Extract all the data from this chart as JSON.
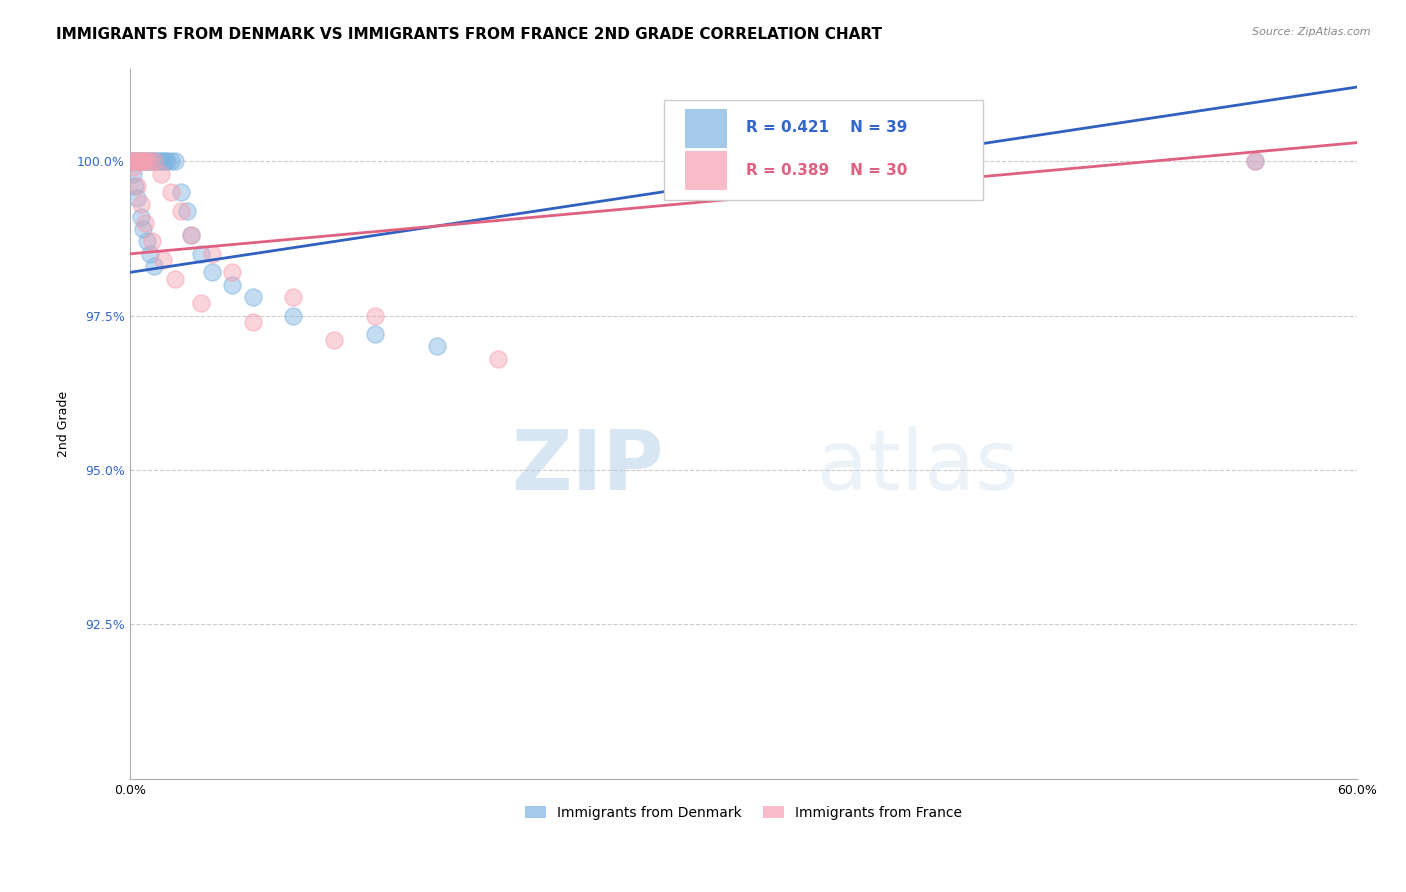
{
  "title": "IMMIGRANTS FROM DENMARK VS IMMIGRANTS FROM FRANCE 2ND GRADE CORRELATION CHART",
  "source_text": "Source: ZipAtlas.com",
  "ylabel": "2nd Grade",
  "xlim": [
    0.0,
    60.0
  ],
  "ylim": [
    90.0,
    101.5
  ],
  "yticks": [
    92.5,
    95.0,
    97.5,
    100.0
  ],
  "ytick_labels": [
    "92.5%",
    "95.0%",
    "97.5%",
    "100.0%"
  ],
  "xticks": [
    0.0,
    60.0
  ],
  "xtick_labels": [
    "0.0%",
    "60.0%"
  ],
  "denmark_color": "#7EB3E0",
  "france_color": "#F4A0B0",
  "denmark_line_color": "#3060C0",
  "france_line_color": "#E06080",
  "legend_denmark": "Immigrants from Denmark",
  "legend_france": "Immigrants from France",
  "r_denmark": 0.421,
  "n_denmark": 39,
  "r_france": 0.389,
  "n_france": 30,
  "dk_x": [
    0.1,
    0.2,
    0.3,
    0.4,
    0.5,
    0.6,
    0.7,
    0.8,
    0.9,
    1.0,
    1.1,
    1.2,
    1.3,
    1.4,
    1.5,
    1.6,
    1.7,
    1.8,
    2.0,
    2.2,
    2.5,
    2.8,
    3.0,
    3.5,
    4.0,
    5.0,
    6.0,
    8.0,
    12.0,
    15.0,
    0.15,
    0.25,
    0.35,
    0.55,
    0.65,
    0.85,
    1.0,
    1.2,
    55.0
  ],
  "dk_y": [
    100.0,
    100.0,
    100.0,
    100.0,
    100.0,
    100.0,
    100.0,
    100.0,
    100.0,
    100.0,
    100.0,
    100.0,
    100.0,
    100.0,
    100.0,
    100.0,
    100.0,
    100.0,
    100.0,
    100.0,
    99.5,
    99.2,
    98.8,
    98.5,
    98.2,
    98.0,
    97.8,
    97.5,
    97.2,
    97.0,
    99.8,
    99.6,
    99.4,
    99.1,
    98.9,
    98.7,
    98.5,
    98.3,
    100.0
  ],
  "fr_x": [
    0.1,
    0.2,
    0.3,
    0.4,
    0.5,
    0.6,
    0.7,
    0.8,
    1.0,
    1.2,
    1.5,
    2.0,
    2.5,
    3.0,
    4.0,
    5.0,
    8.0,
    12.0,
    0.15,
    0.35,
    0.55,
    0.75,
    1.1,
    1.6,
    2.2,
    3.5,
    6.0,
    10.0,
    55.0,
    18.0
  ],
  "fr_y": [
    100.0,
    100.0,
    100.0,
    100.0,
    100.0,
    100.0,
    100.0,
    100.0,
    100.0,
    100.0,
    99.8,
    99.5,
    99.2,
    98.8,
    98.5,
    98.2,
    97.8,
    97.5,
    99.9,
    99.6,
    99.3,
    99.0,
    98.7,
    98.4,
    98.1,
    97.7,
    97.4,
    97.1,
    100.0,
    96.8
  ],
  "background_color": "#FFFFFF",
  "grid_color": "#CCCCCC",
  "watermark_zip": "ZIP",
  "watermark_atlas": "atlas",
  "title_fontsize": 11,
  "axis_label_fontsize": 9,
  "tick_fontsize": 9,
  "legend_fontsize": 10,
  "dk_line_x0": 0.0,
  "dk_line_y0": 98.2,
  "dk_line_x1": 60.0,
  "dk_line_y1": 101.2,
  "fr_line_x0": 0.0,
  "fr_line_y0": 98.5,
  "fr_line_x1": 60.0,
  "fr_line_y1": 100.3
}
